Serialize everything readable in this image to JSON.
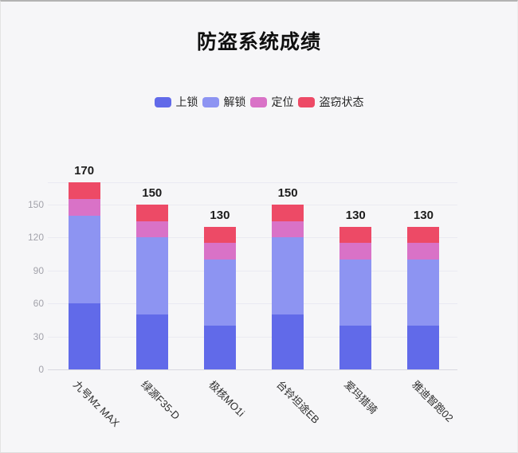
{
  "chart_data": {
    "type": "bar",
    "stacked": true,
    "title": "防盗系统成绩",
    "categories": [
      "九号Mz MAX",
      "绿源F35-D",
      "极核MO1i",
      "台铃坦途EB",
      "爱玛猎骑",
      "雅迪智跑02"
    ],
    "series": [
      {
        "name": "上锁",
        "color": "#616ae9",
        "values": [
          60,
          50,
          40,
          50,
          40,
          40
        ]
      },
      {
        "name": "解锁",
        "color": "#8d94f2",
        "values": [
          80,
          70,
          60,
          70,
          60,
          60
        ]
      },
      {
        "name": "定位",
        "color": "#d972c7",
        "values": [
          15,
          15,
          15,
          15,
          15,
          15
        ]
      },
      {
        "name": "盗窃状态",
        "color": "#ed4a66",
        "values": [
          15,
          15,
          15,
          15,
          15,
          15
        ]
      }
    ],
    "totals": [
      170,
      150,
      130,
      150,
      130,
      130
    ],
    "yticks": [
      0,
      30,
      60,
      90,
      120,
      150
    ],
    "ymax": 170,
    "ylabel": "",
    "xlabel": "",
    "legend_position": "top",
    "grid": true,
    "background_color": "#f6f6f8"
  }
}
